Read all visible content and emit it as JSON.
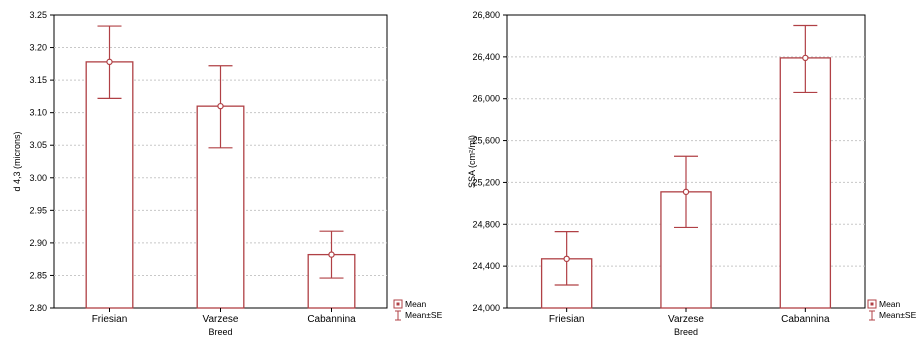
{
  "chart_data": [
    {
      "type": "bar",
      "categories": [
        "Friesian",
        "Varzese",
        "Cabannina"
      ],
      "mean": [
        3.178,
        3.11,
        2.882
      ],
      "se_low": [
        3.122,
        3.046,
        2.846
      ],
      "se_high": [
        3.233,
        3.172,
        2.918
      ],
      "ylabel": "d 4,3 (microns)",
      "xlabel": "Breed",
      "ylim": [
        2.8,
        3.25
      ],
      "yticks": [
        "2.80",
        "2.85",
        "2.90",
        "2.95",
        "3.00",
        "3.05",
        "3.10",
        "3.15",
        "3.20",
        "3.25"
      ],
      "ytick_values": [
        2.8,
        2.85,
        2.9,
        2.95,
        3.0,
        3.05,
        3.1,
        3.15,
        3.2,
        3.25
      ],
      "grid": true,
      "legend": {
        "position": "bottom-right",
        "entries": [
          "Mean",
          "Mean±SE"
        ]
      },
      "colors": {
        "bar": "#b04045",
        "grid": "#c8c8c8"
      }
    },
    {
      "type": "bar",
      "categories": [
        "Friesian",
        "Varzese",
        "Cabannina"
      ],
      "mean": [
        24470,
        25110,
        26390
      ],
      "se_low": [
        24220,
        24770,
        26060
      ],
      "se_high": [
        24730,
        25450,
        26700
      ],
      "ylabel": "SSA (cm²/ml)",
      "xlabel": "Breed",
      "ylim": [
        24000,
        26800
      ],
      "yticks": [
        "24,000",
        "24,400",
        "24,800",
        "25,200",
        "25,600",
        "26,000",
        "26,400",
        "26,800"
      ],
      "ytick_values": [
        24000,
        24400,
        24800,
        25200,
        25600,
        26000,
        26400,
        26800
      ],
      "grid": true,
      "legend": {
        "position": "bottom-right",
        "entries": [
          "Mean",
          "Mean±SE"
        ]
      },
      "colors": {
        "bar": "#b04045",
        "grid": "#c8c8c8"
      }
    }
  ]
}
